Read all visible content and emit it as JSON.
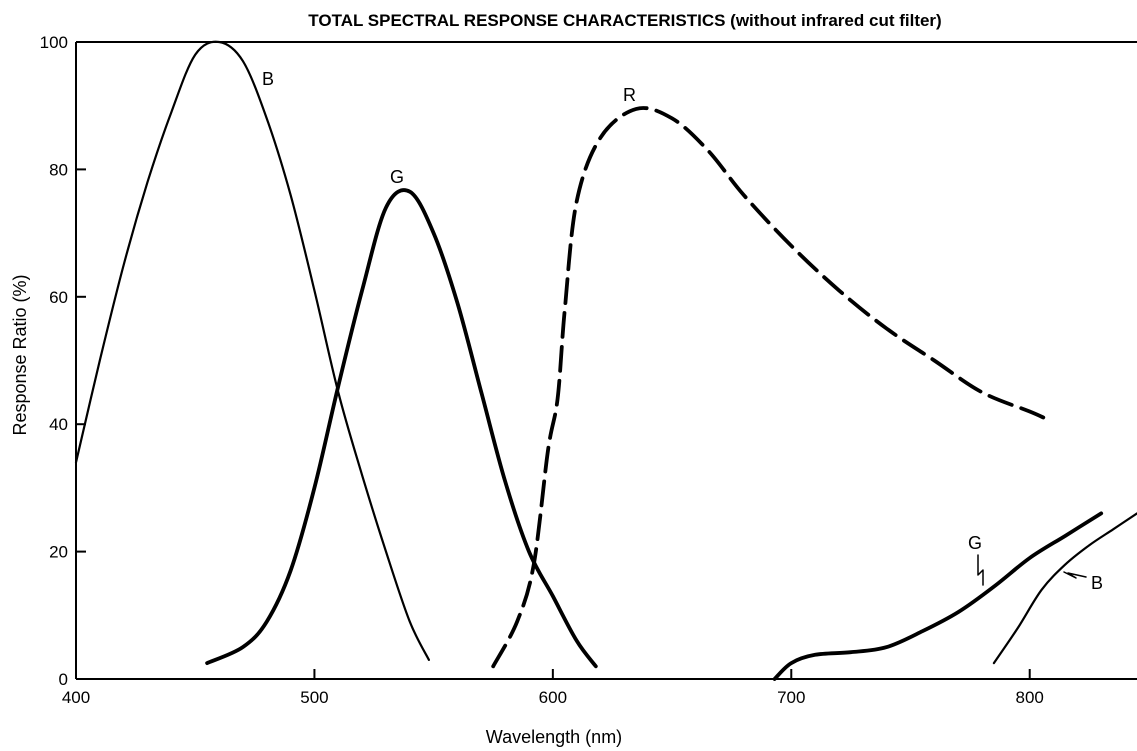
{
  "chart_data": {
    "type": "line",
    "title": "TOTAL SPECTRAL RESPONSE CHARACTERISTICS (without infrared cut filter)",
    "xlabel": "Wavelength (nm)",
    "ylabel": "Response Ratio (%)",
    "xlim": [
      400,
      845
    ],
    "ylim": [
      0,
      100
    ],
    "x_ticks": [
      "400",
      "500",
      "600",
      "700",
      "800"
    ],
    "y_ticks": [
      "0",
      "20",
      "40",
      "60",
      "80",
      "100"
    ],
    "grid": false,
    "legend": "none",
    "series": [
      {
        "name": "B",
        "style": "thin-solid",
        "points": [
          [
            400,
            34
          ],
          [
            410,
            50
          ],
          [
            420,
            65
          ],
          [
            430,
            78
          ],
          [
            440,
            89
          ],
          [
            450,
            98
          ],
          [
            460,
            100
          ],
          [
            470,
            97
          ],
          [
            480,
            88
          ],
          [
            490,
            76
          ],
          [
            500,
            61
          ],
          [
            510,
            45
          ],
          [
            520,
            32
          ],
          [
            530,
            20
          ],
          [
            540,
            9
          ],
          [
            548,
            3
          ]
        ]
      },
      {
        "name": "G",
        "style": "thick-solid",
        "points": [
          [
            455,
            2.5
          ],
          [
            470,
            5
          ],
          [
            480,
            9
          ],
          [
            490,
            17
          ],
          [
            500,
            30
          ],
          [
            510,
            46
          ],
          [
            520,
            61
          ],
          [
            530,
            74
          ],
          [
            540,
            76.5
          ],
          [
            550,
            70
          ],
          [
            560,
            59
          ],
          [
            570,
            45
          ],
          [
            580,
            31
          ],
          [
            590,
            20
          ],
          [
            600,
            13
          ],
          [
            610,
            6
          ],
          [
            618,
            2
          ]
        ]
      },
      {
        "name": "R",
        "style": "thick-dashed",
        "points": [
          [
            575,
            2
          ],
          [
            585,
            9
          ],
          [
            592,
            18
          ],
          [
            598,
            36
          ],
          [
            602,
            44
          ],
          [
            605,
            58
          ],
          [
            610,
            75
          ],
          [
            620,
            85
          ],
          [
            635,
            89.5
          ],
          [
            650,
            88
          ],
          [
            665,
            83
          ],
          [
            680,
            76
          ],
          [
            700,
            68
          ],
          [
            720,
            61
          ],
          [
            740,
            55
          ],
          [
            760,
            50
          ],
          [
            780,
            45
          ],
          [
            800,
            42
          ],
          [
            806,
            41
          ]
        ]
      },
      {
        "name": "G",
        "style": "thick-solid",
        "points": [
          [
            693,
            0
          ],
          [
            700,
            2.5
          ],
          [
            710,
            3.8
          ],
          [
            725,
            4.2
          ],
          [
            740,
            5
          ],
          [
            755,
            7.5
          ],
          [
            770,
            10.5
          ],
          [
            785,
            14.5
          ],
          [
            800,
            19
          ],
          [
            815,
            22.5
          ],
          [
            830,
            26
          ]
        ]
      },
      {
        "name": "B",
        "style": "thin-solid",
        "points": [
          [
            785,
            2.5
          ],
          [
            795,
            8
          ],
          [
            805,
            14
          ],
          [
            815,
            18
          ],
          [
            825,
            21
          ],
          [
            835,
            23.5
          ],
          [
            845,
            26
          ]
        ]
      }
    ],
    "annotations": [
      "B",
      "G",
      "R",
      "G",
      "B"
    ]
  }
}
